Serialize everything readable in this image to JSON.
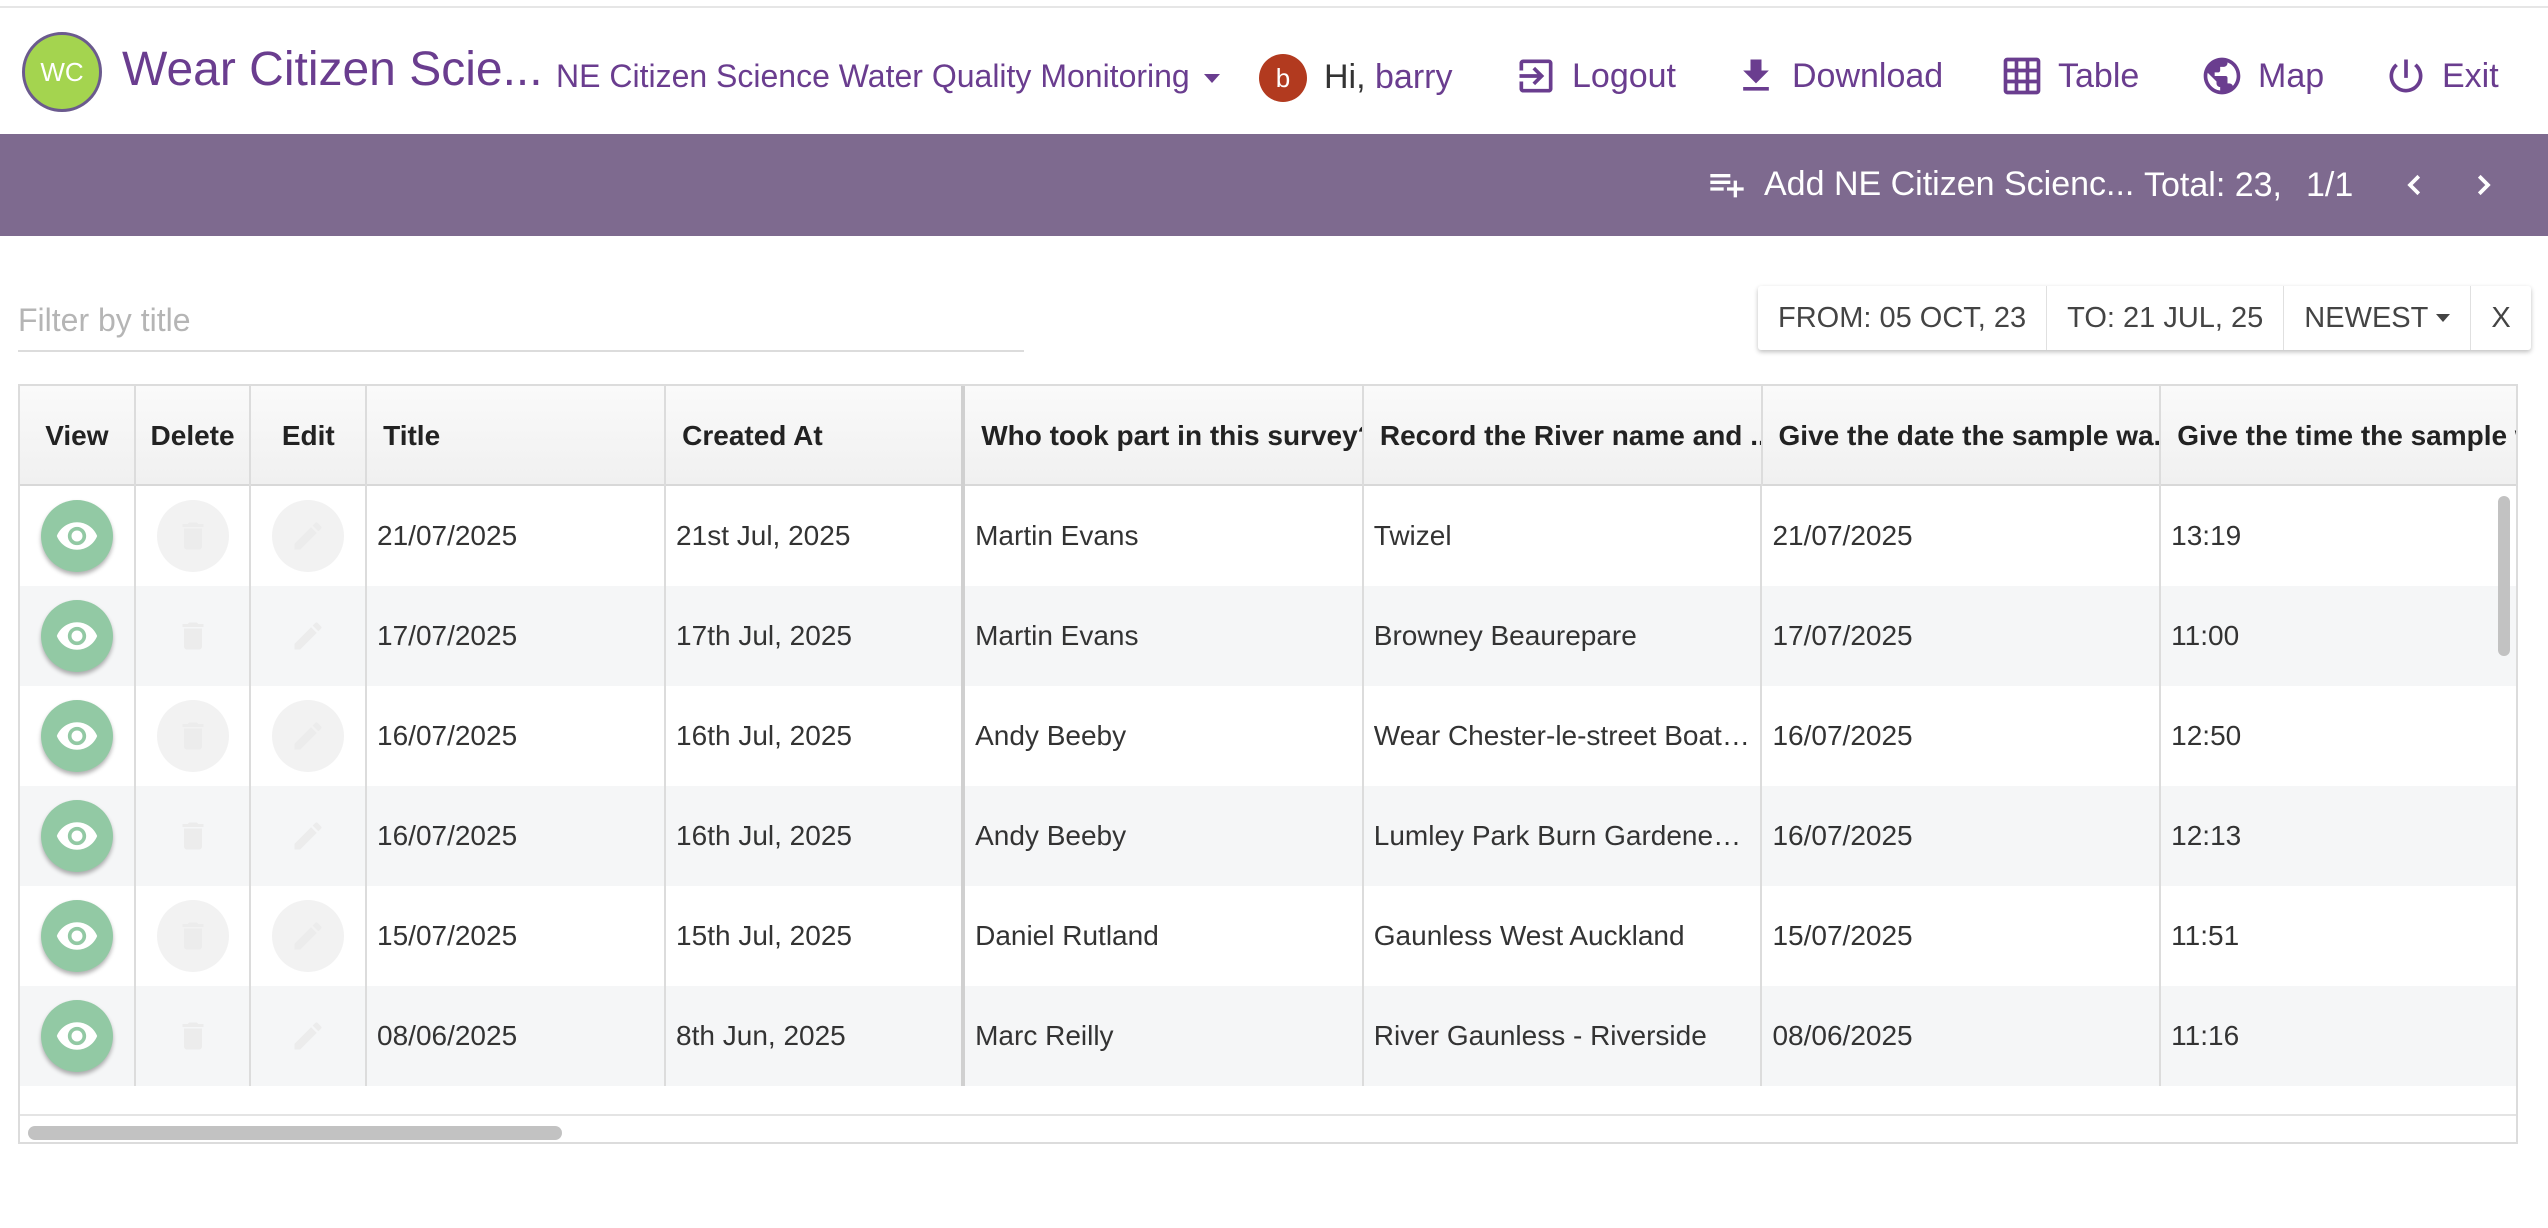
{
  "header": {
    "logo_text": "WC",
    "app_title": "Wear Citizen Scie...",
    "survey_select": "NE Citizen Science Water Quality Monitoring",
    "user_initial": "b",
    "greeting": "Hi,",
    "username": "barry",
    "nav": {
      "logout": "Logout",
      "download": "Download",
      "table": "Table",
      "map": "Map",
      "exit": "Exit"
    }
  },
  "toolbar": {
    "add_label": "Add NE Citizen Scienc...",
    "total": "Total: 23,",
    "page": "1/1"
  },
  "filter": {
    "placeholder": "Filter by title",
    "from": "FROM: 05 OCT, 23",
    "to": "TO: 21 JUL, 25",
    "sort": "NEWEST",
    "clear": "X"
  },
  "table": {
    "columns": {
      "view": "View",
      "delete": "Delete",
      "edit": "Edit",
      "title": "Title",
      "created": "Created At",
      "who": "Who took part in this survey?",
      "river": "Record the River name and ...",
      "date": "Give the date the sample wa...",
      "time": "Give the time the sample wa"
    },
    "rows": [
      {
        "title": "21/07/2025",
        "created": "21st Jul, 2025",
        "who": "Martin Evans",
        "river": "Twizel",
        "date": "21/07/2025",
        "time": "13:19"
      },
      {
        "title": "17/07/2025",
        "created": "17th Jul, 2025",
        "who": "Martin Evans",
        "river": "Browney Beaurepare",
        "date": "17/07/2025",
        "time": "11:00"
      },
      {
        "title": "16/07/2025",
        "created": "16th Jul, 2025",
        "who": "Andy Beeby",
        "river": "Wear Chester-le-street Boathouse",
        "date": "16/07/2025",
        "time": "12:50"
      },
      {
        "title": "16/07/2025",
        "created": "16th Jul, 2025",
        "who": "Andy Beeby",
        "river": "Lumley Park Burn Gardener’s Arms",
        "date": "16/07/2025",
        "time": "12:13"
      },
      {
        "title": "15/07/2025",
        "created": "15th Jul, 2025",
        "who": "Daniel Rutland",
        "river": "Gaunless West Auckland",
        "date": "15/07/2025",
        "time": "11:51"
      },
      {
        "title": "08/06/2025",
        "created": "8th Jun, 2025",
        "who": "Marc Reilly",
        "river": "River Gaunless - Riverside",
        "date": "08/06/2025",
        "time": "11:16"
      }
    ]
  },
  "colors": {
    "brand_purple": "#6a3d8f",
    "toolbar_bg": "#7e6a8f",
    "view_button": "#92c9a4",
    "logo_green": "#a4d44f",
    "avatar_red": "#b23a1f"
  }
}
